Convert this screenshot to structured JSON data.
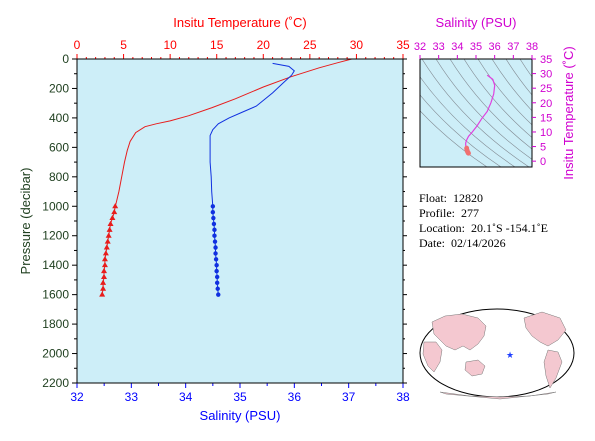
{
  "chart_data": [
    {
      "type": "line",
      "name": "profile",
      "top_axis_title": "Insitu Temperature (˚C)",
      "bottom_axis_title": "Salinity (PSU)",
      "left_axis_title": "Pressure (decibar)",
      "temperature_range": [
        0,
        35
      ],
      "temperature_ticks": [
        "0",
        "5",
        "10",
        "15",
        "20",
        "25",
        "30",
        "35"
      ],
      "salinity_range": [
        32,
        38
      ],
      "salinity_ticks": [
        "32",
        "33",
        "34",
        "35",
        "36",
        "37",
        "38"
      ],
      "pressure_range": [
        0,
        2200
      ],
      "pressure_ticks": [
        "0",
        "200",
        "400",
        "600",
        "800",
        "1000",
        "1200",
        "1400",
        "1600",
        "1800",
        "2000",
        "2200"
      ],
      "colors": {
        "temperature": "#e81c1c",
        "salinity": "#1030e0",
        "plot_bg": "#cdeef8",
        "top_axis": "#ff0000",
        "bottom_axis": "#0000ff",
        "left_axis": "#204020"
      },
      "series": [
        {
          "key": "temperature",
          "units": "˚C",
          "values": [
            [
              29.5,
              0
            ],
            [
              28,
              25
            ],
            [
              26,
              60
            ],
            [
              23,
              120
            ],
            [
              20,
              190
            ],
            [
              17,
              270
            ],
            [
              14.5,
              330
            ],
            [
              12,
              385
            ],
            [
              10,
              420
            ],
            [
              8.5,
              440
            ],
            [
              7.3,
              460
            ],
            [
              6.3,
              500
            ],
            [
              5.7,
              560
            ],
            [
              5.4,
              620
            ],
            [
              5.1,
              700
            ],
            [
              4.8,
              800
            ],
            [
              4.5,
              900
            ],
            [
              4.2,
              980
            ],
            [
              4.1,
              1000
            ],
            [
              4.0,
              1040
            ],
            [
              3.8,
              1080
            ],
            [
              3.6,
              1120
            ],
            [
              3.5,
              1160
            ],
            [
              3.4,
              1200
            ],
            [
              3.3,
              1240
            ],
            [
              3.2,
              1280
            ],
            [
              3.1,
              1320
            ],
            [
              3.0,
              1360
            ],
            [
              3.0,
              1400
            ],
            [
              2.9,
              1440
            ],
            [
              2.9,
              1480
            ],
            [
              2.8,
              1520
            ],
            [
              2.8,
              1560
            ],
            [
              2.7,
              1600
            ]
          ],
          "markers": [
            [
              4.1,
              1000
            ],
            [
              4.0,
              1040
            ],
            [
              3.8,
              1080
            ],
            [
              3.6,
              1120
            ],
            [
              3.5,
              1160
            ],
            [
              3.4,
              1200
            ],
            [
              3.3,
              1240
            ],
            [
              3.2,
              1280
            ],
            [
              3.1,
              1320
            ],
            [
              3.0,
              1360
            ],
            [
              3.0,
              1400
            ],
            [
              2.9,
              1440
            ],
            [
              2.9,
              1480
            ],
            [
              2.8,
              1520
            ],
            [
              2.8,
              1560
            ],
            [
              2.7,
              1600
            ]
          ],
          "marker": "triangle"
        },
        {
          "key": "salinity",
          "units": "PSU",
          "values": [
            [
              35.6,
              30
            ],
            [
              35.9,
              50
            ],
            [
              36.0,
              80
            ],
            [
              35.95,
              110
            ],
            [
              35.8,
              160
            ],
            [
              35.6,
              230
            ],
            [
              35.3,
              320
            ],
            [
              35.05,
              360
            ],
            [
              34.8,
              400
            ],
            [
              34.6,
              440
            ],
            [
              34.5,
              480
            ],
            [
              34.45,
              520
            ],
            [
              34.45,
              600
            ],
            [
              34.45,
              700
            ],
            [
              34.47,
              800
            ],
            [
              34.48,
              900
            ],
            [
              34.5,
              1000
            ],
            [
              34.5,
              1040
            ],
            [
              34.51,
              1080
            ],
            [
              34.52,
              1120
            ],
            [
              34.53,
              1160
            ],
            [
              34.53,
              1200
            ],
            [
              34.54,
              1240
            ],
            [
              34.55,
              1280
            ],
            [
              34.55,
              1320
            ],
            [
              34.56,
              1360
            ],
            [
              34.57,
              1400
            ],
            [
              34.57,
              1440
            ],
            [
              34.58,
              1480
            ],
            [
              34.58,
              1520
            ],
            [
              34.59,
              1560
            ],
            [
              34.6,
              1600
            ]
          ],
          "markers": [
            [
              34.5,
              1000
            ],
            [
              34.5,
              1040
            ],
            [
              34.51,
              1080
            ],
            [
              34.52,
              1120
            ],
            [
              34.53,
              1160
            ],
            [
              34.53,
              1200
            ],
            [
              34.54,
              1240
            ],
            [
              34.55,
              1280
            ],
            [
              34.55,
              1320
            ],
            [
              34.56,
              1360
            ],
            [
              34.57,
              1400
            ],
            [
              34.57,
              1440
            ],
            [
              34.58,
              1480
            ],
            [
              34.58,
              1520
            ],
            [
              34.59,
              1560
            ],
            [
              34.6,
              1600
            ]
          ],
          "marker": "circle"
        }
      ]
    },
    {
      "type": "scatter",
      "name": "ts-diagram",
      "top_axis_title": "Salinity (PSU)",
      "right_axis_title": "Insitu Temperature (˚C)",
      "salinity_range": [
        32,
        38
      ],
      "salinity_ticks": [
        "32",
        "33",
        "34",
        "35",
        "36",
        "37",
        "38"
      ],
      "temperature_range": [
        -2,
        35
      ],
      "temperature_ticks": [
        "0",
        "5",
        "10",
        "15",
        "20",
        "25",
        "30",
        "35"
      ],
      "colors": {
        "trace": "#e040e0",
        "deep": "#f07070",
        "axis": "#d000d0",
        "contours": "#808890"
      },
      "points": [
        [
          35.6,
          29.5
        ],
        [
          35.9,
          28
        ],
        [
          36.0,
          26
        ],
        [
          35.95,
          23
        ],
        [
          35.8,
          20
        ],
        [
          35.6,
          17
        ],
        [
          35.3,
          14.5
        ],
        [
          35.05,
          12
        ],
        [
          34.8,
          10
        ],
        [
          34.6,
          8.5
        ],
        [
          34.5,
          7.3
        ],
        [
          34.45,
          6.3
        ],
        [
          34.45,
          5.7
        ],
        [
          34.45,
          5.4
        ],
        [
          34.47,
          5.1
        ],
        [
          34.48,
          4.8
        ],
        [
          34.5,
          4.5
        ],
        [
          34.5,
          4.2
        ],
        [
          34.52,
          3.8
        ],
        [
          34.53,
          3.5
        ],
        [
          34.55,
          3.2
        ],
        [
          34.57,
          3.0
        ],
        [
          34.58,
          2.8
        ],
        [
          34.6,
          2.7
        ]
      ]
    }
  ],
  "info": {
    "float_label": "Float:",
    "float_value": "12820",
    "profile_label": "Profile:",
    "profile_value": "277",
    "location_label": "Location:",
    "location_value": "20.1˚S  -154.1˚E",
    "date_label": "Date:",
    "date_value": "02/14/2026"
  },
  "map": {
    "marker_symbol": "★",
    "marker_color": "#2040ff",
    "land_color": "#f4c8d0",
    "ocean_color": "#ffffff"
  }
}
